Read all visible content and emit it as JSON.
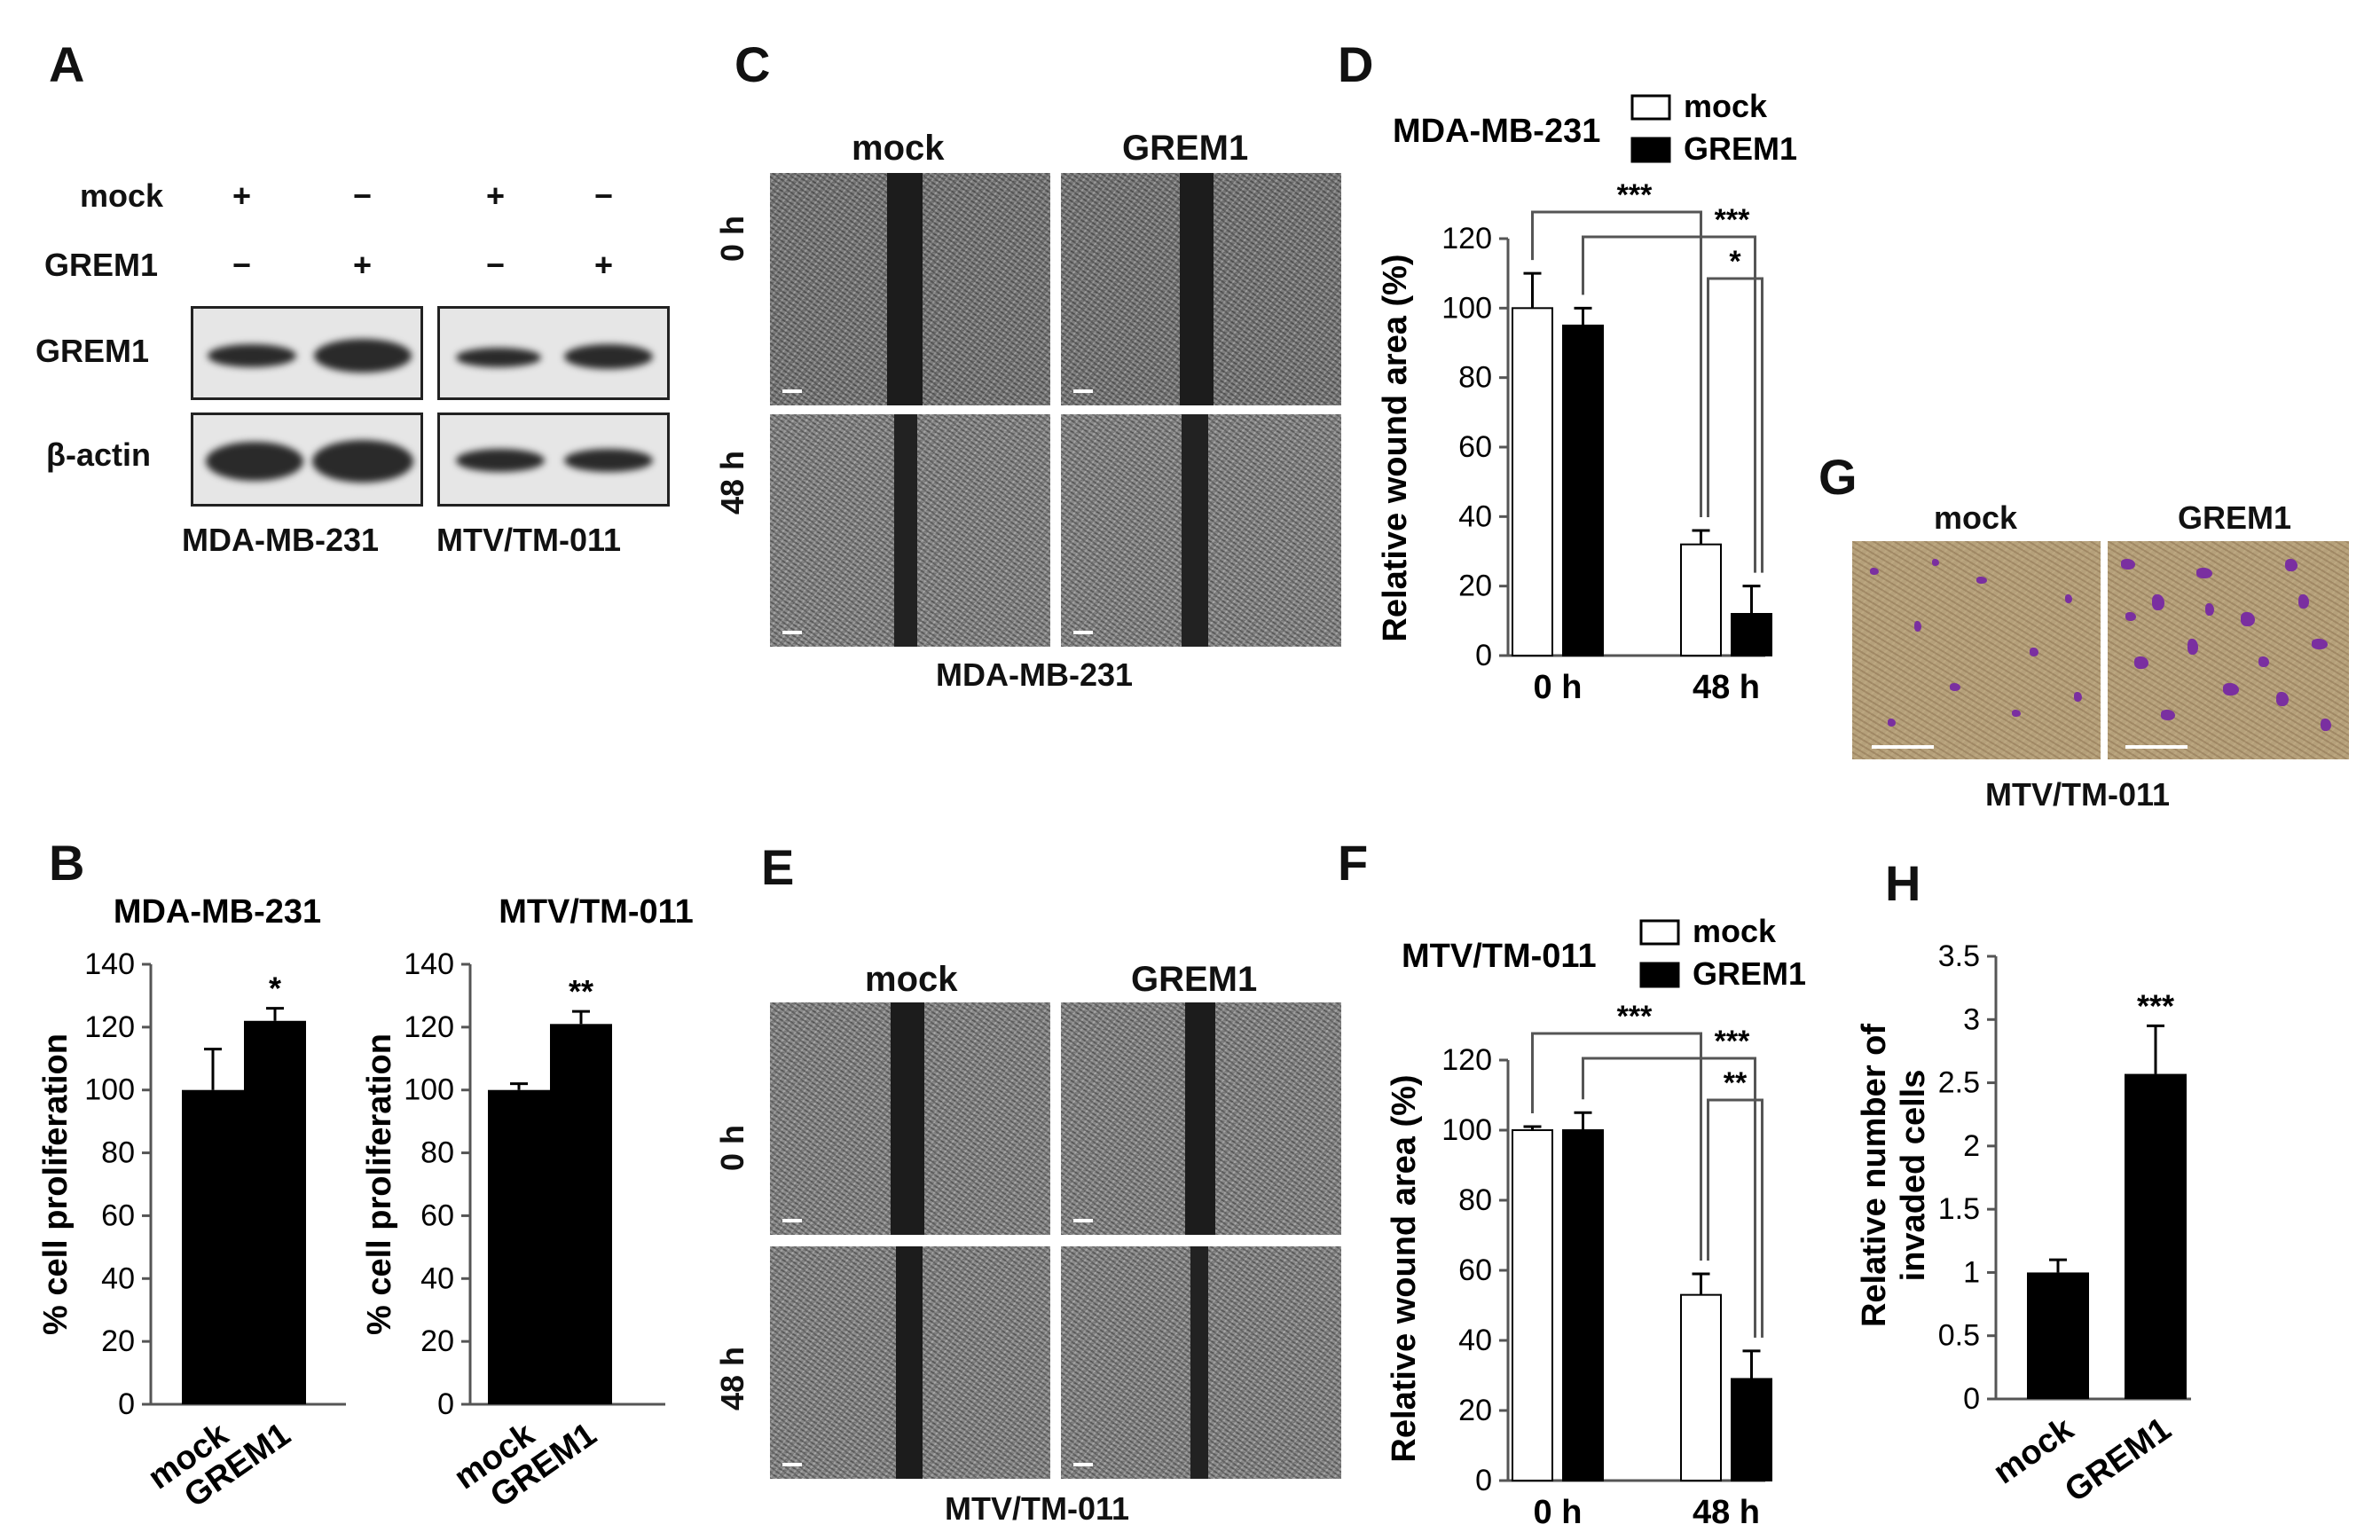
{
  "panels": {
    "A": "A",
    "B": "B",
    "C": "C",
    "D": "D",
    "E": "E",
    "F": "F",
    "G": "G",
    "H": "H"
  },
  "panelA": {
    "row_labels": [
      "mock",
      "GREM1",
      "GREM1",
      "β-actin"
    ],
    "mock_signs": [
      "+",
      "−",
      "+",
      "−"
    ],
    "grem1_signs": [
      "−",
      "+",
      "−",
      "+"
    ],
    "cell_lines": [
      "MDA-MB-231",
      "MTV/TM-011"
    ]
  },
  "panelC": {
    "col_labels": [
      "mock",
      "GREM1"
    ],
    "row_labels": [
      "0 h",
      "48 h"
    ],
    "caption": "MDA-MB-231"
  },
  "panelE": {
    "col_labels": [
      "mock",
      "GREM1"
    ],
    "row_labels": [
      "0 h",
      "48 h"
    ],
    "caption": "MTV/TM-011"
  },
  "panelG": {
    "col_labels": [
      "mock",
      "GREM1"
    ],
    "caption": "MTV/TM-011"
  },
  "chart_data": [
    {
      "id": "B1",
      "type": "bar",
      "title": "MDA-MB-231",
      "ylabel": "% cell proliferation",
      "categories": [
        "mock",
        "GREM1"
      ],
      "values": [
        100,
        122
      ],
      "errors": [
        13,
        4
      ],
      "ylim": [
        0,
        140
      ],
      "yticks": [
        0,
        20,
        40,
        60,
        80,
        100,
        120,
        140
      ],
      "annotations": [
        "",
        "*"
      ]
    },
    {
      "id": "B2",
      "type": "bar",
      "title": "MTV/TM-011",
      "ylabel": "% cell proliferation",
      "categories": [
        "mock",
        "GREM1"
      ],
      "values": [
        100,
        121
      ],
      "errors": [
        2,
        4
      ],
      "ylim": [
        0,
        140
      ],
      "yticks": [
        0,
        20,
        40,
        60,
        80,
        100,
        120,
        140
      ],
      "annotations": [
        "",
        "**"
      ]
    },
    {
      "id": "D",
      "type": "bar",
      "title": "MDA-MB-231",
      "ylabel": "Relative wound area (%)",
      "categories": [
        "0 h",
        "48 h"
      ],
      "series": [
        {
          "name": "mock",
          "values": [
            100,
            32
          ],
          "errors": [
            10,
            4
          ]
        },
        {
          "name": "GREM1",
          "values": [
            95,
            12
          ],
          "errors": [
            5,
            8
          ]
        }
      ],
      "ylim": [
        0,
        120
      ],
      "yticks": [
        0,
        20,
        40,
        60,
        80,
        100,
        120
      ],
      "significance": [
        "***",
        "***",
        "*"
      ]
    },
    {
      "id": "F",
      "type": "bar",
      "title": "MTV/TM-011",
      "ylabel": "Relative wound area (%)",
      "categories": [
        "0 h",
        "48 h"
      ],
      "series": [
        {
          "name": "mock",
          "values": [
            100,
            53
          ],
          "errors": [
            1,
            6
          ]
        },
        {
          "name": "GREM1",
          "values": [
            100,
            29
          ],
          "errors": [
            5,
            8
          ]
        }
      ],
      "ylim": [
        0,
        120
      ],
      "yticks": [
        0,
        20,
        40,
        60,
        80,
        100,
        120
      ],
      "significance": [
        "***",
        "***",
        "**"
      ]
    },
    {
      "id": "H",
      "type": "bar",
      "ylabel_lines": [
        "Relative number of",
        "invaded cells"
      ],
      "categories": [
        "mock",
        "GREM1"
      ],
      "values": [
        1.0,
        2.57
      ],
      "errors": [
        0.1,
        0.38
      ],
      "ylim": [
        0,
        3.5
      ],
      "yticks": [
        "0",
        "0.5",
        "1",
        "1.5",
        "2",
        "2.5",
        "3",
        "3.5"
      ],
      "annotations": [
        "",
        "***"
      ]
    }
  ]
}
